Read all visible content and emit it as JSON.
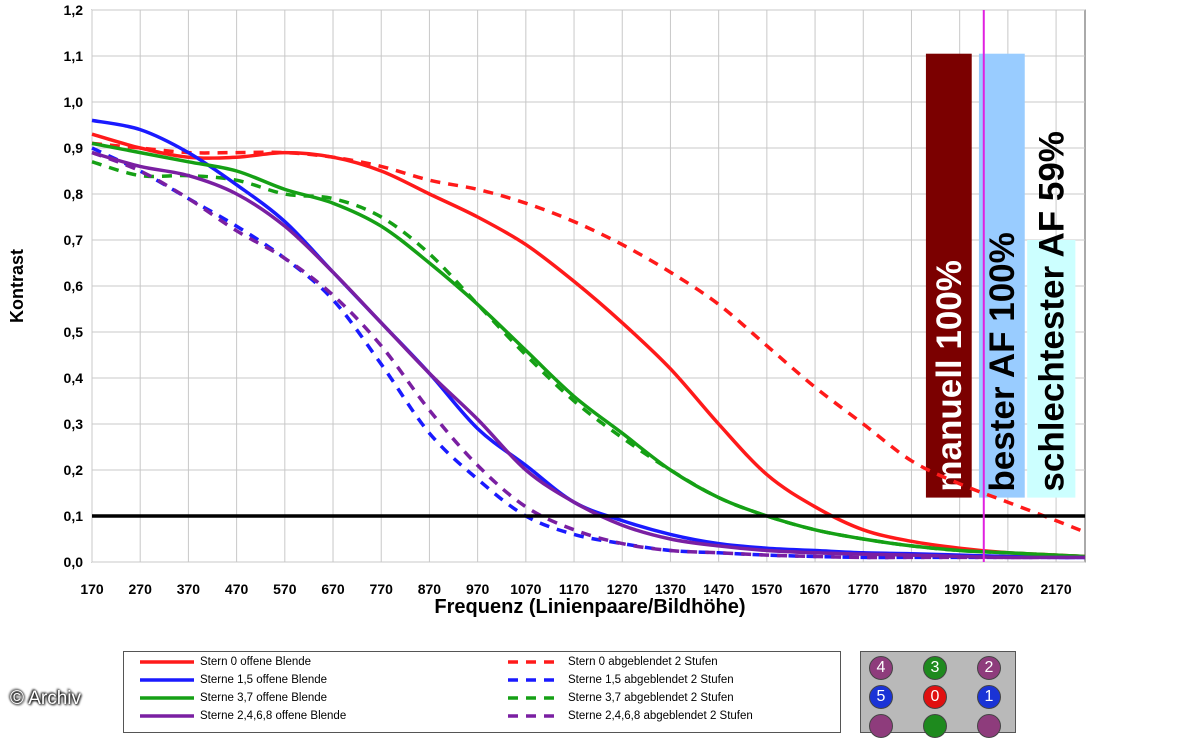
{
  "chart_data": {
    "type": "line",
    "xlabel": "Frequenz (Linienpaare/Bildhöhe)",
    "ylabel": "Kontrast",
    "xlim": [
      170,
      2230
    ],
    "ylim": [
      0,
      1.2
    ],
    "x_ticks": [
      "170",
      "270",
      "370",
      "470",
      "570",
      "670",
      "770",
      "870",
      "970",
      "1070",
      "1170",
      "1270",
      "1370",
      "1470",
      "1570",
      "1670",
      "1770",
      "1870",
      "1970",
      "2070",
      "2170"
    ],
    "y_ticks": [
      "0,0",
      "0,1",
      "0,2",
      "0,3",
      "0,4",
      "0,5",
      "0,6",
      "0,7",
      "0,8",
      "0,9",
      "1,0",
      "1,1",
      "1,2"
    ],
    "grid": true,
    "reference_lines": [
      {
        "axis": "y",
        "value": 0.1,
        "color": "#000000"
      },
      {
        "axis": "x",
        "value": 2020,
        "color": "#e020e0"
      }
    ],
    "bars": [
      {
        "label": "manuell 100%",
        "x_from": 1900,
        "x_to": 1995,
        "value": 1.105,
        "base": 0.14,
        "color": "#7b0000",
        "text_color": "#ffffff"
      },
      {
        "label": "bester AF 100%",
        "x_from": 2010,
        "x_to": 2105,
        "value": 1.105,
        "base": 0.14,
        "color": "#99ccff",
        "text_color": "#000000"
      },
      {
        "label": "schlechtester AF 59%",
        "x_from": 2110,
        "x_to": 2210,
        "value": 0.7,
        "base": 0.14,
        "color": "#ccffff",
        "text_color": "#000000"
      }
    ],
    "series": [
      {
        "name": "Stern 0 offene Blende",
        "color": "#ff1a1a",
        "dash": false,
        "x": [
          170,
          270,
          370,
          470,
          570,
          670,
          770,
          870,
          970,
          1070,
          1170,
          1270,
          1370,
          1470,
          1570,
          1670,
          1770,
          1870,
          1970,
          2070,
          2170,
          2230
        ],
        "y": [
          0.93,
          0.9,
          0.88,
          0.88,
          0.89,
          0.88,
          0.85,
          0.8,
          0.75,
          0.69,
          0.61,
          0.52,
          0.42,
          0.3,
          0.19,
          0.12,
          0.07,
          0.045,
          0.03,
          0.02,
          0.015,
          0.012
        ]
      },
      {
        "name": "Sterne 1,5 offene Blende",
        "color": "#1a1aff",
        "dash": false,
        "x": [
          170,
          270,
          370,
          470,
          570,
          670,
          770,
          870,
          970,
          1070,
          1170,
          1270,
          1370,
          1470,
          1570,
          1670,
          1770,
          1870,
          1970,
          2070,
          2170,
          2230
        ],
        "y": [
          0.96,
          0.94,
          0.89,
          0.82,
          0.74,
          0.63,
          0.52,
          0.41,
          0.29,
          0.21,
          0.13,
          0.09,
          0.06,
          0.04,
          0.03,
          0.025,
          0.02,
          0.018,
          0.015,
          0.012,
          0.01,
          0.01
        ]
      },
      {
        "name": "Sterne 3,7 offene Blende",
        "color": "#15a015",
        "dash": false,
        "x": [
          170,
          270,
          370,
          470,
          570,
          670,
          770,
          870,
          970,
          1070,
          1170,
          1270,
          1370,
          1470,
          1570,
          1670,
          1770,
          1870,
          1970,
          2070,
          2170,
          2230
        ],
        "y": [
          0.91,
          0.89,
          0.87,
          0.85,
          0.81,
          0.78,
          0.73,
          0.65,
          0.56,
          0.46,
          0.36,
          0.28,
          0.2,
          0.14,
          0.1,
          0.07,
          0.05,
          0.035,
          0.025,
          0.02,
          0.015,
          0.012
        ]
      },
      {
        "name": "Sterne 2,4,6,8 offene Blende",
        "color": "#7a1fa2",
        "dash": false,
        "x": [
          170,
          270,
          370,
          470,
          570,
          670,
          770,
          870,
          970,
          1070,
          1170,
          1270,
          1370,
          1470,
          1570,
          1670,
          1770,
          1870,
          1970,
          2070,
          2170,
          2230
        ],
        "y": [
          0.89,
          0.86,
          0.84,
          0.8,
          0.73,
          0.63,
          0.52,
          0.41,
          0.31,
          0.2,
          0.13,
          0.08,
          0.05,
          0.035,
          0.025,
          0.02,
          0.017,
          0.015,
          0.012,
          0.01,
          0.01,
          0.01
        ]
      },
      {
        "name": "Stern 0 abgeblendet 2 Stufen",
        "color": "#ff1a1a",
        "dash": true,
        "x": [
          170,
          270,
          370,
          470,
          570,
          670,
          770,
          870,
          970,
          1070,
          1170,
          1270,
          1370,
          1470,
          1570,
          1670,
          1770,
          1870,
          1970,
          2070,
          2170,
          2230
        ],
        "y": [
          0.91,
          0.9,
          0.89,
          0.89,
          0.89,
          0.88,
          0.86,
          0.83,
          0.81,
          0.78,
          0.74,
          0.69,
          0.63,
          0.56,
          0.47,
          0.38,
          0.3,
          0.22,
          0.17,
          0.13,
          0.09,
          0.065
        ]
      },
      {
        "name": "Sterne 1,5 abgeblendet 2 Stufen",
        "color": "#1a1aff",
        "dash": true,
        "x": [
          170,
          270,
          370,
          470,
          570,
          670,
          770,
          870,
          970,
          1070,
          1170,
          1270,
          1370,
          1470,
          1570,
          1670,
          1770,
          1870,
          1970,
          2070,
          2170,
          2230
        ],
        "y": [
          0.9,
          0.85,
          0.79,
          0.73,
          0.66,
          0.57,
          0.43,
          0.28,
          0.18,
          0.1,
          0.06,
          0.04,
          0.025,
          0.02,
          0.015,
          0.012,
          0.01,
          0.01,
          0.01,
          0.01,
          0.01,
          0.01
        ]
      },
      {
        "name": "Sterne 3,7 abgeblendet 2 Stufen",
        "color": "#15a015",
        "dash": true,
        "x": [
          170,
          270,
          370,
          470,
          570,
          670,
          770,
          870,
          970,
          1070,
          1170,
          1270,
          1370,
          1470,
          1570,
          1670,
          1770,
          1870,
          1970,
          2070,
          2170,
          2230
        ],
        "y": [
          0.87,
          0.84,
          0.84,
          0.83,
          0.8,
          0.79,
          0.75,
          0.67,
          0.56,
          0.45,
          0.35,
          0.27,
          0.2,
          0.14,
          0.1,
          0.07,
          0.05,
          0.035,
          0.025,
          0.02,
          0.015,
          0.012
        ]
      },
      {
        "name": "Sterne 2,4,6,8 abgeblendet 2 Stufen",
        "color": "#7a1fa2",
        "dash": true,
        "x": [
          170,
          270,
          370,
          470,
          570,
          670,
          770,
          870,
          970,
          1070,
          1170,
          1270,
          1370,
          1470,
          1570,
          1670,
          1770,
          1870,
          1970,
          2070,
          2170,
          2230
        ],
        "y": [
          0.89,
          0.85,
          0.79,
          0.72,
          0.66,
          0.58,
          0.47,
          0.33,
          0.21,
          0.12,
          0.07,
          0.04,
          0.025,
          0.02,
          0.015,
          0.012,
          0.01,
          0.01,
          0.01,
          0.01,
          0.01,
          0.01
        ]
      }
    ]
  },
  "legend": {
    "items": [
      {
        "label": "Stern 0 offene Blende",
        "color": "#ff1a1a",
        "dash": false
      },
      {
        "label": "Sterne 1,5 offene Blende",
        "color": "#1a1aff",
        "dash": false
      },
      {
        "label": "Sterne 3,7 offene Blende",
        "color": "#15a015",
        "dash": false
      },
      {
        "label": "Sterne 2,4,6,8 offene Blende",
        "color": "#7a1fa2",
        "dash": false
      },
      {
        "label": "Stern 0 abgeblendet 2 Stufen",
        "color": "#ff1a1a",
        "dash": true
      },
      {
        "label": "Sterne 1,5 abgeblendet 2 Stufen",
        "color": "#1a1aff",
        "dash": true
      },
      {
        "label": "Sterne 3,7 abgeblendet 2 Stufen",
        "color": "#15a015",
        "dash": true
      },
      {
        "label": "Sterne 2,4,6,8 abgeblendet 2 Stufen",
        "color": "#7a1fa2",
        "dash": true
      }
    ]
  },
  "sensor_map": {
    "dots": [
      {
        "label": "4",
        "color": "#8e3c7c"
      },
      {
        "label": "3",
        "color": "#1e8a1e"
      },
      {
        "label": "2",
        "color": "#8e3c7c"
      },
      {
        "label": "5",
        "color": "#1a33d6"
      },
      {
        "label": "0",
        "color": "#e01010"
      },
      {
        "label": "1",
        "color": "#1a33d6"
      },
      {
        "label": "",
        "color": "#8e3c7c"
      },
      {
        "label": "",
        "color": "#1e8a1e"
      },
      {
        "label": "",
        "color": "#8e3c7c"
      }
    ]
  },
  "credit": "© Archiv"
}
